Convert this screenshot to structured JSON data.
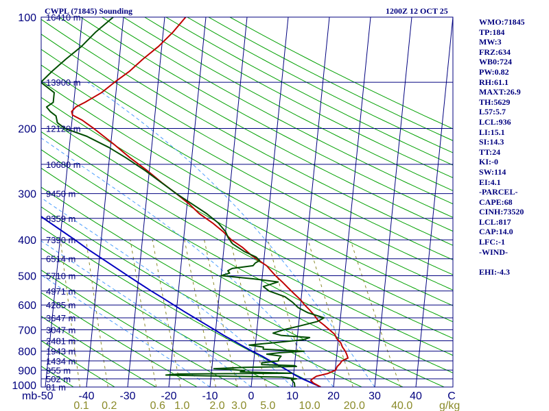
{
  "header": {
    "left_title": "CWPL (71845) Sounding",
    "right_title": "1200Z 12 OCT 25"
  },
  "indices": [
    "WMO:71845",
    "TP:184",
    "MW:3",
    "FRZ:634",
    "WB0:724",
    "PW:0.82",
    "RH:61.1",
    "MAXT:26.9",
    "TH:5629",
    "L57:5.7",
    "LCL:936",
    "LI:15.1",
    "SI:14.3",
    "TT:24",
    "KI:-0",
    "SW:114",
    "EI:4.1",
    "-PARCEL-",
    "CAPE:68",
    "CINH:73520",
    "LCL:817",
    "CAP:14.0",
    "LFC:-1",
    "-WIND-",
    "",
    "EHI:-4.3"
  ],
  "colors": {
    "frame": "#00007f",
    "isobar": "#00007f",
    "isotherm": "#00007f",
    "dry_adiabat": "#00a000",
    "moist_adiabat": "#4a9eff",
    "mixing_ratio": "#8a8a28",
    "temperature": "#c00000",
    "dewpoint": "#004d00",
    "parcel": "#0000c0"
  },
  "chart_data": {
    "type": "skew-t log-p sounding",
    "title": "CWPL (71845) Sounding 1200Z 12 OCT 25",
    "xlabel": "C",
    "ylabel": "mb",
    "mixing_ratio_unit": "g/kg",
    "pressure_range_mb": [
      1000,
      100
    ],
    "temperature_axis_range_c": [
      -50,
      50
    ],
    "isobars_mb": [
      100,
      200,
      300,
      400,
      500,
      600,
      700,
      800,
      900,
      1000
    ],
    "pressure_tick_labels": [
      "100",
      "200",
      "300",
      "400",
      "500",
      "600",
      "700",
      "800",
      "900",
      "1000"
    ],
    "temperature_tick_labels": [
      "-50",
      "-40",
      "-30",
      "-20",
      "-10",
      "0",
      "10",
      "20",
      "30",
      "40"
    ],
    "isotherms_c": [
      -110,
      -100,
      -90,
      -80,
      -70,
      -60,
      -50,
      -40,
      -30,
      -20,
      -10,
      0,
      10,
      20,
      30,
      40,
      50
    ],
    "mixing_ratio_labels": [
      "0.1",
      "0.2",
      "0.6",
      "1.0",
      "2.0",
      "3.0",
      "5.0",
      "10.0",
      "20.0",
      "40.0"
    ],
    "mixing_ratio_lines_gkg": [
      0.1,
      0.2,
      0.6,
      1.0,
      2.0,
      3.0,
      5.0,
      10.0,
      20.0,
      40.0
    ],
    "dry_adiabats_theta_k": [
      200,
      210,
      220,
      230,
      240,
      250,
      260,
      270,
      280,
      290,
      300,
      310,
      320,
      330,
      340,
      350,
      360,
      370,
      380,
      390,
      400,
      410,
      420,
      430,
      440,
      450,
      460,
      470,
      480,
      490,
      500
    ],
    "moist_adiabats_c": [
      -10,
      0,
      10,
      20,
      30
    ],
    "heights": [
      {
        "p": 100,
        "label": "16410 m"
      },
      {
        "p": 150,
        "label": "13900 m"
      },
      {
        "p": 200,
        "label": "12120 m"
      },
      {
        "p": 250,
        "label": "10680 m"
      },
      {
        "p": 300,
        "label": "9450 m"
      },
      {
        "p": 350,
        "label": "8359 m"
      },
      {
        "p": 400,
        "label": "7390 m"
      },
      {
        "p": 450,
        "label": "6514 m"
      },
      {
        "p": 500,
        "label": "5710 m"
      },
      {
        "p": 550,
        "label": "4971 m"
      },
      {
        "p": 600,
        "label": "4285 m"
      },
      {
        "p": 650,
        "label": "3647 m"
      },
      {
        "p": 700,
        "label": "3047 m"
      },
      {
        "p": 750,
        "label": "2481 m"
      },
      {
        "p": 800,
        "label": "1943 m"
      },
      {
        "p": 850,
        "label": "1434 m"
      },
      {
        "p": 900,
        "label": "955 m"
      },
      {
        "p": 950,
        "label": "502 m"
      },
      {
        "p": 1000,
        "label": "81 m"
      }
    ],
    "series": [
      {
        "name": "temperature",
        "unit": "C",
        "points": [
          [
            1000,
            16.9
          ],
          [
            975,
            15.0
          ],
          [
            960,
            14.3
          ],
          [
            950,
            14.7
          ],
          [
            935,
            15.6
          ],
          [
            920,
            18.2
          ],
          [
            900,
            20.1
          ],
          [
            880,
            20.4
          ],
          [
            865,
            21.0
          ],
          [
            850,
            21.4
          ],
          [
            835,
            22.8
          ],
          [
            820,
            22.5
          ],
          [
            800,
            22.0
          ],
          [
            780,
            21.2
          ],
          [
            760,
            20.7
          ],
          [
            740,
            19.6
          ],
          [
            720,
            19.0
          ],
          [
            700,
            17.6
          ],
          [
            680,
            16.2
          ],
          [
            660,
            14.6
          ],
          [
            640,
            13.6
          ],
          [
            620,
            12.4
          ],
          [
            600,
            11.0
          ],
          [
            580,
            9.8
          ],
          [
            560,
            8.2
          ],
          [
            540,
            6.6
          ],
          [
            520,
            5.0
          ],
          [
            500,
            3.2
          ],
          [
            485,
            2.0
          ],
          [
            470,
            0.8
          ],
          [
            455,
            -1.2
          ],
          [
            440,
            -3.2
          ],
          [
            420,
            -5.4
          ],
          [
            400,
            -8.4
          ],
          [
            380,
            -10.6
          ],
          [
            360,
            -13.4
          ],
          [
            340,
            -16.8
          ],
          [
            320,
            -19.5
          ],
          [
            300,
            -22.9
          ],
          [
            280,
            -26.7
          ],
          [
            260,
            -30.5
          ],
          [
            240,
            -35.0
          ],
          [
            220,
            -39.4
          ],
          [
            200,
            -44.5
          ],
          [
            190,
            -47.5
          ],
          [
            184,
            -50.0
          ],
          [
            180,
            -50.3
          ],
          [
            175,
            -49.4
          ],
          [
            170,
            -47.3
          ],
          [
            160,
            -43.5
          ],
          [
            150,
            -40.6
          ],
          [
            140,
            -37.2
          ],
          [
            130,
            -34.3
          ],
          [
            120,
            -30.8
          ],
          [
            110,
            -27.7
          ],
          [
            100,
            -24.9
          ]
        ]
      },
      {
        "name": "dewpoint",
        "unit": "C",
        "points": [
          [
            1000,
            10.6
          ],
          [
            975,
            10.4
          ],
          [
            955,
            9.6
          ],
          [
            950,
            10.8
          ],
          [
            940,
            7.4
          ],
          [
            933,
            -10.5
          ],
          [
            928,
            -21.0
          ],
          [
            922,
            -18.0
          ],
          [
            918,
            9.5
          ],
          [
            910,
            -3.0
          ],
          [
            903,
            -2.0
          ],
          [
            897,
            -5.0
          ],
          [
            892,
            -9.5
          ],
          [
            885,
            -2.0
          ],
          [
            880,
            10.5
          ],
          [
            875,
            10.0
          ],
          [
            870,
            2.0
          ],
          [
            860,
            2.0
          ],
          [
            850,
            6.0
          ],
          [
            840,
            6.0
          ],
          [
            825,
            6.5
          ],
          [
            815,
            3.0
          ],
          [
            808,
            6.0
          ],
          [
            800,
            12.0
          ],
          [
            790,
            2.0
          ],
          [
            780,
            2.0
          ],
          [
            770,
            -1.5
          ],
          [
            760,
            4.0
          ],
          [
            745,
            11.5
          ],
          [
            735,
            13.0
          ],
          [
            725,
            6.0
          ],
          [
            715,
            4.0
          ],
          [
            700,
            6.5
          ],
          [
            685,
            10.0
          ],
          [
            665,
            14.5
          ],
          [
            650,
            16.0
          ],
          [
            630,
            12.0
          ],
          [
            610,
            9.5
          ],
          [
            590,
            8.0
          ],
          [
            570,
            6.0
          ],
          [
            550,
            2.0
          ],
          [
            535,
            0.5
          ],
          [
            520,
            4.0
          ],
          [
            510,
            -2.0
          ],
          [
            500,
            -10.0
          ],
          [
            492,
            -8.0
          ],
          [
            485,
            -8.5
          ],
          [
            478,
            -7.5
          ],
          [
            470,
            -2.5
          ],
          [
            462,
            -2.0
          ],
          [
            455,
            -1.0
          ],
          [
            445,
            -2.0
          ],
          [
            430,
            -5.0
          ],
          [
            410,
            -8.0
          ],
          [
            395,
            -9.2
          ],
          [
            380,
            -10.0
          ],
          [
            360,
            -12.0
          ],
          [
            340,
            -15.0
          ],
          [
            320,
            -18.8
          ],
          [
            300,
            -22.9
          ],
          [
            280,
            -26.8
          ],
          [
            260,
            -31.0
          ],
          [
            240,
            -36.0
          ],
          [
            225,
            -40.4
          ],
          [
            210,
            -46.0
          ],
          [
            200,
            -51.5
          ],
          [
            193,
            -53.5
          ],
          [
            185,
            -54.0
          ],
          [
            180,
            -55.5
          ],
          [
            175,
            -56.5
          ],
          [
            170,
            -55.0
          ],
          [
            160,
            -55.0
          ],
          [
            150,
            -58.5
          ],
          [
            140,
            -56.0
          ],
          [
            130,
            -53.0
          ],
          [
            120,
            -49.5
          ],
          [
            110,
            -46.5
          ],
          [
            100,
            -42.5
          ]
        ]
      },
      {
        "name": "parcel",
        "unit": "C",
        "points": [
          [
            1000,
            16.9
          ],
          [
            975,
            14.6
          ],
          [
            950,
            12.2
          ],
          [
            925,
            10.1
          ],
          [
            900,
            8.3
          ],
          [
            875,
            6.3
          ],
          [
            850,
            4.0
          ],
          [
            825,
            1.9
          ],
          [
            800,
            -0.6
          ],
          [
            775,
            -3.0
          ],
          [
            750,
            -5.4
          ],
          [
            725,
            -7.9
          ],
          [
            700,
            -10.3
          ],
          [
            675,
            -12.8
          ],
          [
            650,
            -15.4
          ],
          [
            625,
            -18.1
          ],
          [
            600,
            -20.8
          ],
          [
            575,
            -23.6
          ],
          [
            550,
            -26.6
          ],
          [
            525,
            -29.6
          ],
          [
            500,
            -32.7
          ],
          [
            475,
            -35.9
          ],
          [
            450,
            -39.3
          ],
          [
            425,
            -42.9
          ],
          [
            400,
            -46.4
          ],
          [
            375,
            -50.3
          ],
          [
            350,
            -54.5
          ],
          [
            325,
            -58.6
          ],
          [
            300,
            -63.3
          ],
          [
            275,
            -68.0
          ],
          [
            250,
            -73.3
          ],
          [
            225,
            -79.0
          ],
          [
            200,
            -85.2
          ],
          [
            175,
            -92.0
          ],
          [
            150,
            -99.6
          ],
          [
            125,
            -108.4
          ],
          [
            110,
            -114.2
          ]
        ]
      }
    ]
  }
}
